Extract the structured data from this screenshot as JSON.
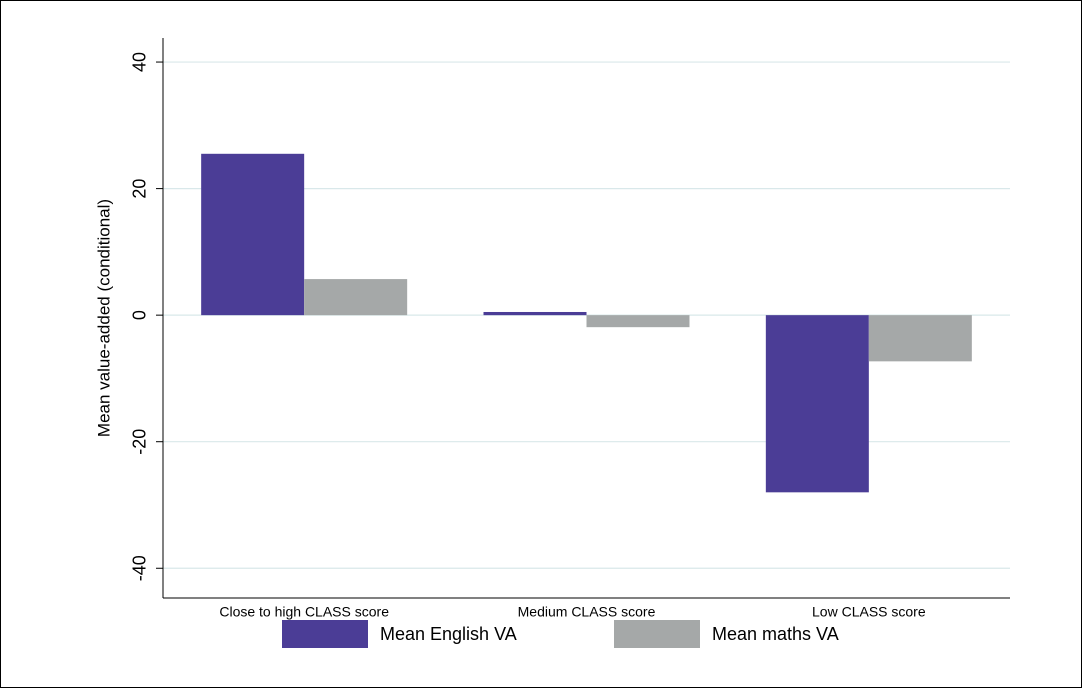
{
  "chart_data": {
    "type": "bar",
    "y_label": "Mean value-added (conditional)",
    "categories": [
      "Close to high CLASS score",
      "Medium CLASS score",
      "Low CLASS score"
    ],
    "series": [
      {
        "name": "Mean English VA",
        "color": "#4b3d96",
        "values": [
          25.5,
          0.5,
          -28.0
        ]
      },
      {
        "name": "Mean maths VA",
        "color": "#a5a8a8",
        "values": [
          5.7,
          -1.9,
          -7.3
        ]
      }
    ],
    "ylim": [
      -44.7,
      43.8
    ],
    "yticks": [
      -40,
      -20,
      0,
      20,
      40
    ],
    "grid": true,
    "legend": "bottom"
  }
}
